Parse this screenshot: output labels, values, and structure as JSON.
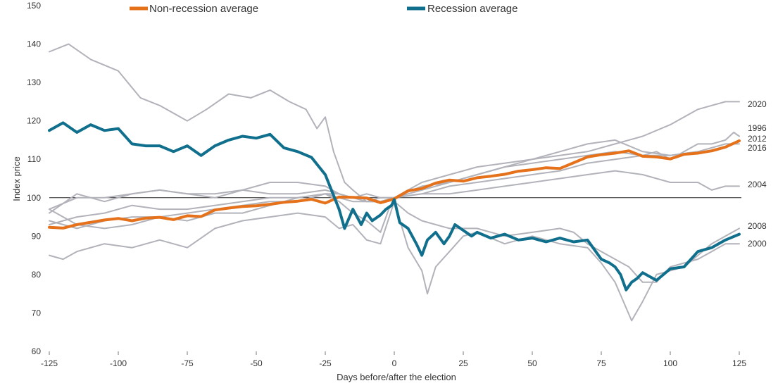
{
  "chart_data": {
    "type": "line",
    "title": "",
    "xlabel": "Days before/after the election",
    "ylabel": "Index price",
    "xlim": [
      -125,
      125
    ],
    "ylim": [
      60,
      150
    ],
    "x_ticks": [
      -125,
      -100,
      -75,
      -50,
      -25,
      0,
      25,
      50,
      75,
      100,
      125
    ],
    "y_ticks": [
      60,
      70,
      80,
      90,
      100,
      110,
      120,
      130,
      140,
      150
    ],
    "reference_line": 100,
    "grid": false,
    "legend": {
      "position": "top-center",
      "entries": [
        {
          "name": "Non-recession average",
          "color": "#E5711B"
        },
        {
          "name": "Recession average",
          "color": "#0F6F8C"
        }
      ]
    },
    "series": [
      {
        "name": "Non-recession average",
        "color": "#E5711B",
        "x": [
          -125,
          -120,
          -115,
          -110,
          -105,
          -100,
          -95,
          -90,
          -85,
          -80,
          -75,
          -70,
          -65,
          -60,
          -55,
          -50,
          -45,
          -40,
          -35,
          -30,
          -25,
          -20,
          -15,
          -10,
          -5,
          0,
          5,
          10,
          15,
          20,
          25,
          30,
          35,
          40,
          45,
          50,
          55,
          60,
          65,
          70,
          75,
          80,
          85,
          90,
          95,
          100,
          105,
          110,
          115,
          120,
          125
        ],
        "y": [
          92.3,
          92.1,
          93.0,
          93.6,
          94.2,
          94.6,
          94.0,
          94.7,
          94.9,
          94.3,
          95.3,
          95.1,
          96.8,
          97.3,
          97.7,
          97.9,
          98.3,
          98.8,
          99.1,
          99.6,
          98.6,
          100.2,
          100.1,
          99.9,
          98.7,
          99.7,
          101.8,
          102.4,
          103.8,
          104.6,
          104.3,
          105.2,
          105.6,
          106.1,
          106.9,
          107.3,
          107.8,
          107.6,
          109.1,
          110.6,
          111.2,
          111.6,
          112.2,
          110.8,
          110.6,
          110.1,
          111.3,
          111.6,
          112.2,
          113.2,
          114.8
        ]
      },
      {
        "name": "Recession average",
        "color": "#0F6F8C",
        "x": [
          -125,
          -120,
          -115,
          -110,
          -105,
          -100,
          -95,
          -90,
          -85,
          -80,
          -75,
          -70,
          -65,
          -60,
          -55,
          -50,
          -45,
          -40,
          -35,
          -30,
          -25,
          -20,
          -18,
          -15,
          -12,
          -10,
          -8,
          -5,
          -3,
          -1,
          0,
          2,
          5,
          8,
          10,
          12,
          15,
          18,
          20,
          22,
          25,
          28,
          30,
          35,
          40,
          45,
          50,
          55,
          60,
          65,
          70,
          75,
          78,
          80,
          82,
          84,
          86,
          88,
          90,
          95,
          100,
          105,
          110,
          115,
          120,
          125
        ],
        "y": [
          117.5,
          119.5,
          117.0,
          119.0,
          117.5,
          118.0,
          114.0,
          113.5,
          113.5,
          112.0,
          113.5,
          111.0,
          113.5,
          115.0,
          116.0,
          115.5,
          116.5,
          113.0,
          112.0,
          110.5,
          106.0,
          97.0,
          92.0,
          97.0,
          93.0,
          96.0,
          94.0,
          95.5,
          97.0,
          98.0,
          99.5,
          93.5,
          92.0,
          88.0,
          85.0,
          89.0,
          91.0,
          88.0,
          90.0,
          93.0,
          91.5,
          90.0,
          91.0,
          89.5,
          90.5,
          89.0,
          89.5,
          88.5,
          89.5,
          88.5,
          89.0,
          84.0,
          83.0,
          82.0,
          80.0,
          76.0,
          78.0,
          79.0,
          80.5,
          78.5,
          81.5,
          82.0,
          86.0,
          87.0,
          89.0,
          90.5
        ]
      },
      {
        "name": "",
        "color": "#B2B3BA",
        "x": [
          -125,
          -118,
          -110,
          -100,
          -92,
          -85,
          -75,
          -68,
          -60,
          -52,
          -45,
          -38,
          -32,
          -28,
          -25,
          -22,
          -18,
          -15,
          -10,
          -5,
          0,
          5,
          10,
          15,
          20,
          25,
          30,
          40,
          50,
          60,
          70,
          80,
          90,
          100,
          110,
          115,
          120,
          123,
          125
        ],
        "y": [
          138,
          140,
          136,
          133,
          126,
          124,
          120,
          123,
          127,
          126,
          128,
          125,
          123,
          118,
          121,
          112,
          104,
          102,
          99,
          100,
          100,
          102,
          104,
          105,
          106,
          107,
          108,
          109,
          110,
          111,
          112,
          114,
          116,
          119,
          123,
          124,
          125,
          125,
          125
        ]
      },
      {
        "name": "",
        "color": "#B2B3BA",
        "x": [
          -125,
          -115,
          -105,
          -95,
          -85,
          -75,
          -65,
          -55,
          -45,
          -35,
          -25,
          -20,
          -15,
          -10,
          -5,
          0,
          10,
          20,
          30,
          40,
          50,
          60,
          70,
          80,
          90,
          95,
          100,
          105,
          110,
          115,
          120,
          123,
          125
        ],
        "y": [
          96,
          101,
          99,
          101,
          102,
          101,
          100,
          102,
          104,
          104,
          103,
          101,
          100,
          99,
          99,
          100,
          101,
          103,
          104,
          105,
          106,
          107,
          109,
          110,
          111,
          112,
          110,
          112,
          114,
          114,
          115,
          117,
          116
        ]
      },
      {
        "name": "",
        "color": "#B2B3BA",
        "x": [
          -125,
          -115,
          -105,
          -95,
          -85,
          -75,
          -65,
          -55,
          -45,
          -35,
          -25,
          -20,
          -15,
          -10,
          -5,
          0,
          10,
          20,
          30,
          40,
          50,
          60,
          70,
          80,
          90,
          100,
          110,
          115,
          120,
          125
        ],
        "y": [
          93,
          95,
          96,
          98,
          97,
          97,
          98,
          99,
          100,
          100,
          101,
          101,
          100,
          100,
          99,
          100,
          103,
          104,
          106,
          108,
          110,
          112,
          114,
          115,
          112,
          111,
          112,
          113,
          114,
          114
        ]
      },
      {
        "name": "",
        "color": "#B2B3BA",
        "x": [
          -125,
          -115,
          -105,
          -95,
          -85,
          -75,
          -65,
          -55,
          -45,
          -35,
          -25,
          -20,
          -15,
          -10,
          -5,
          0,
          10,
          20,
          30,
          40,
          50,
          60,
          70,
          80,
          90,
          100,
          110,
          115,
          120,
          125
        ],
        "y": [
          94,
          92,
          94,
          95,
          95,
          96,
          97,
          98,
          99,
          99,
          101,
          100,
          99,
          99,
          99,
          100,
          102,
          104,
          106,
          108,
          109,
          110,
          111,
          112,
          111,
          111,
          112,
          112,
          113,
          115
        ]
      },
      {
        "name": "",
        "color": "#B2B3BA",
        "x": [
          -125,
          -115,
          -105,
          -95,
          -85,
          -75,
          -65,
          -55,
          -45,
          -35,
          -25,
          -20,
          -15,
          -10,
          -5,
          0,
          10,
          20,
          30,
          40,
          50,
          60,
          70,
          80,
          90,
          100,
          110,
          115,
          120,
          125
        ],
        "y": [
          97,
          100,
          100,
          101,
          102,
          101,
          101,
          102,
          101,
          101,
          102,
          101,
          100,
          101,
          100,
          100,
          101,
          101,
          102,
          103,
          104,
          105,
          106,
          107,
          106,
          104,
          104,
          102,
          103,
          103
        ]
      },
      {
        "name": "",
        "color": "#B2B3BA",
        "x": [
          -125,
          -120,
          -115,
          -105,
          -95,
          -85,
          -75,
          -65,
          -55,
          -45,
          -35,
          -25,
          -20,
          -15,
          -10,
          -5,
          0,
          5,
          10,
          12,
          15,
          20,
          25,
          30,
          40,
          50,
          60,
          70,
          75,
          80,
          83,
          86,
          90,
          95,
          100,
          105,
          110,
          115,
          120,
          125
        ],
        "y": [
          85,
          84,
          86,
          88,
          87,
          89,
          87,
          92,
          94,
          95,
          96,
          95,
          92,
          93,
          89,
          88,
          99,
          87,
          81,
          75,
          82,
          86,
          90,
          91,
          88,
          90,
          88,
          87,
          83,
          78,
          73,
          68,
          73,
          80,
          81,
          82,
          85,
          88,
          90,
          92
        ]
      },
      {
        "name": "",
        "color": "#B2B3BA",
        "x": [
          -125,
          -115,
          -105,
          -95,
          -85,
          -75,
          -65,
          -55,
          -45,
          -35,
          -25,
          -20,
          -15,
          -10,
          -5,
          -2,
          0,
          5,
          10,
          20,
          30,
          40,
          50,
          60,
          65,
          70,
          75,
          80,
          85,
          90,
          95,
          100,
          105,
          110,
          115,
          120,
          125
        ],
        "y": [
          97,
          93,
          92,
          93,
          95,
          94,
          96,
          96,
          98,
          100,
          101,
          99,
          96,
          94,
          91,
          97,
          99,
          96,
          94,
          92,
          92,
          90,
          91,
          92,
          91,
          88,
          86,
          84,
          82,
          78,
          78,
          82,
          83,
          84,
          86,
          88,
          88
        ]
      }
    ],
    "end_labels": [
      "2020",
      "1996",
      "2012",
      "2016",
      "2004",
      "2008",
      "2000"
    ]
  }
}
